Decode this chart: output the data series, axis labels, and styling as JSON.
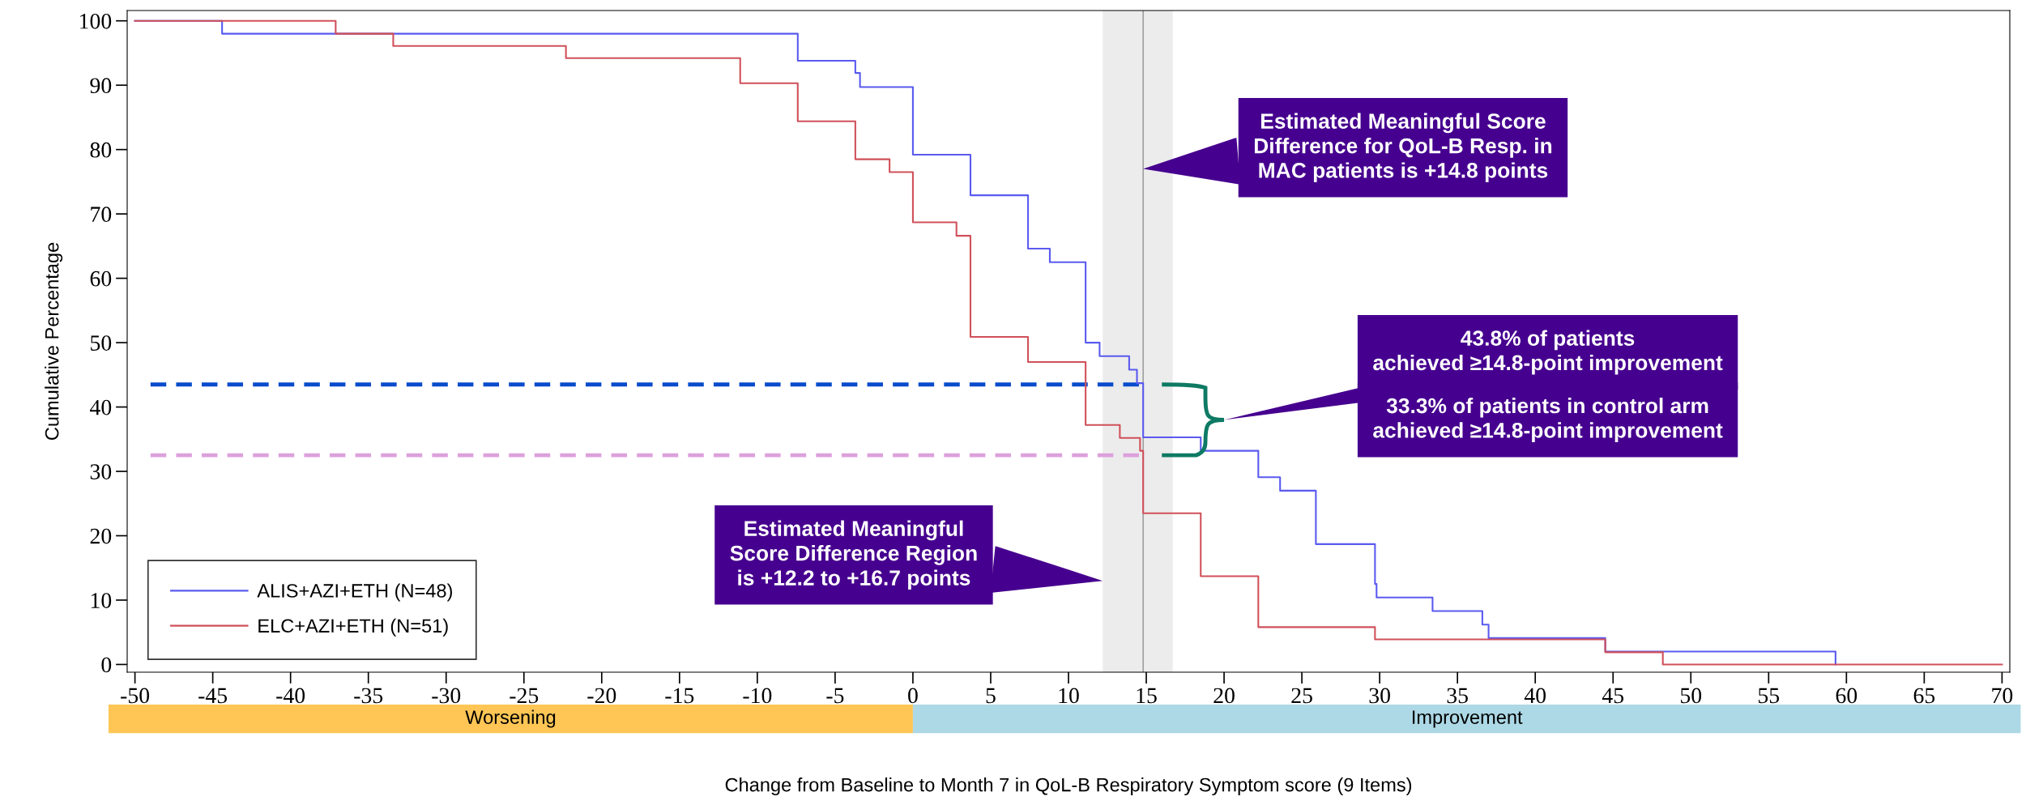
{
  "chart_data": {
    "type": "step",
    "xlabel": "Change from Baseline to Month 7 in QoL-B Respiratory Symptom score (9 Items)",
    "ylabel": "Cumulative Percentage",
    "xlim": [
      -50.5,
      70.5
    ],
    "xticks": [
      -50,
      -45,
      -40,
      -35,
      -30,
      -25,
      -20,
      -15,
      -10,
      -5,
      0,
      5,
      10,
      15,
      20,
      25,
      30,
      35,
      40,
      45,
      50,
      55,
      60,
      65,
      70
    ],
    "ylim": [
      -1.2,
      101.6
    ],
    "yticks": [
      0,
      10,
      20,
      30,
      40,
      50,
      60,
      70,
      80,
      90,
      100
    ],
    "grid": false,
    "legend": "bottom left",
    "series": [
      {
        "name": "ALIS+AZI+ETH (N=48)",
        "color": "#5a5af0",
        "x": [
          -50,
          -44.4,
          -7.4,
          -3.7,
          -3.4,
          0,
          3.7,
          7.4,
          8.8,
          11.1,
          12.0,
          13.9,
          14.4,
          14.8,
          18.5,
          22.2,
          23.6,
          25.9,
          29.7,
          29.8,
          33.4,
          36.6,
          37.0,
          44.5,
          59.3
        ],
        "values": [
          100,
          98.0,
          93.8,
          91.9,
          89.7,
          79.2,
          72.9,
          64.6,
          62.5,
          50.0,
          47.9,
          45.8,
          43.7,
          35.3,
          33.2,
          29.1,
          27.0,
          18.7,
          12.5,
          10.4,
          8.3,
          6.2,
          4.1,
          2.0,
          0
        ]
      },
      {
        "name": "ELC+AZI+ETH (N=51)",
        "color": "#d0505a",
        "x": [
          -50,
          -37.1,
          -33.4,
          -22.3,
          -11.1,
          -7.4,
          -3.7,
          -1.5,
          0,
          2.8,
          3.7,
          7.4,
          11.1,
          13.3,
          14.6,
          14.8,
          18.5,
          22.2,
          29.7,
          44.5,
          48.2,
          70
        ],
        "values": [
          100,
          98.0,
          96.1,
          94.2,
          90.3,
          84.4,
          78.5,
          76.5,
          68.7,
          66.6,
          50.9,
          47.0,
          37.2,
          35.2,
          33.2,
          23.5,
          13.7,
          5.8,
          3.9,
          1.9,
          0,
          0
        ]
      },
      {
        "type": "line",
        "line_style": "dashed",
        "color": "#0a4bcc",
        "x": [
          -49,
          14.8
        ],
        "values": [
          43.5,
          43.5
        ]
      },
      {
        "type": "line",
        "line_style": "dashed",
        "color": "#dda0dd",
        "x": [
          -49,
          14.8
        ],
        "values": [
          32.5,
          32.5
        ]
      }
    ],
    "ref_lines": [
      {
        "axis": "x",
        "value": 14.8,
        "color": "#a0a0a0"
      }
    ],
    "bands": [
      {
        "axis": "x",
        "from": 12.2,
        "to": 16.7,
        "color": "#ececec"
      }
    ],
    "annotations": [
      {
        "text": "Estimated Meaningful Score\nDifference for QoL-B Resp. in\nMAC patients is +14.8 points",
        "x": 14.8,
        "y": 77
      },
      "43.8% of patients\nachieved ≥14.8-point improvement",
      {
        "text": "Estimated Meaningful\nScore Difference Region\nis +12.2 to +16.7 points",
        "x": 12.2,
        "y": 13
      },
      "33.3% of patients in control arm\nachieved ≥14.8-point improvement",
      "Worsening",
      "Improvement"
    ]
  }
}
